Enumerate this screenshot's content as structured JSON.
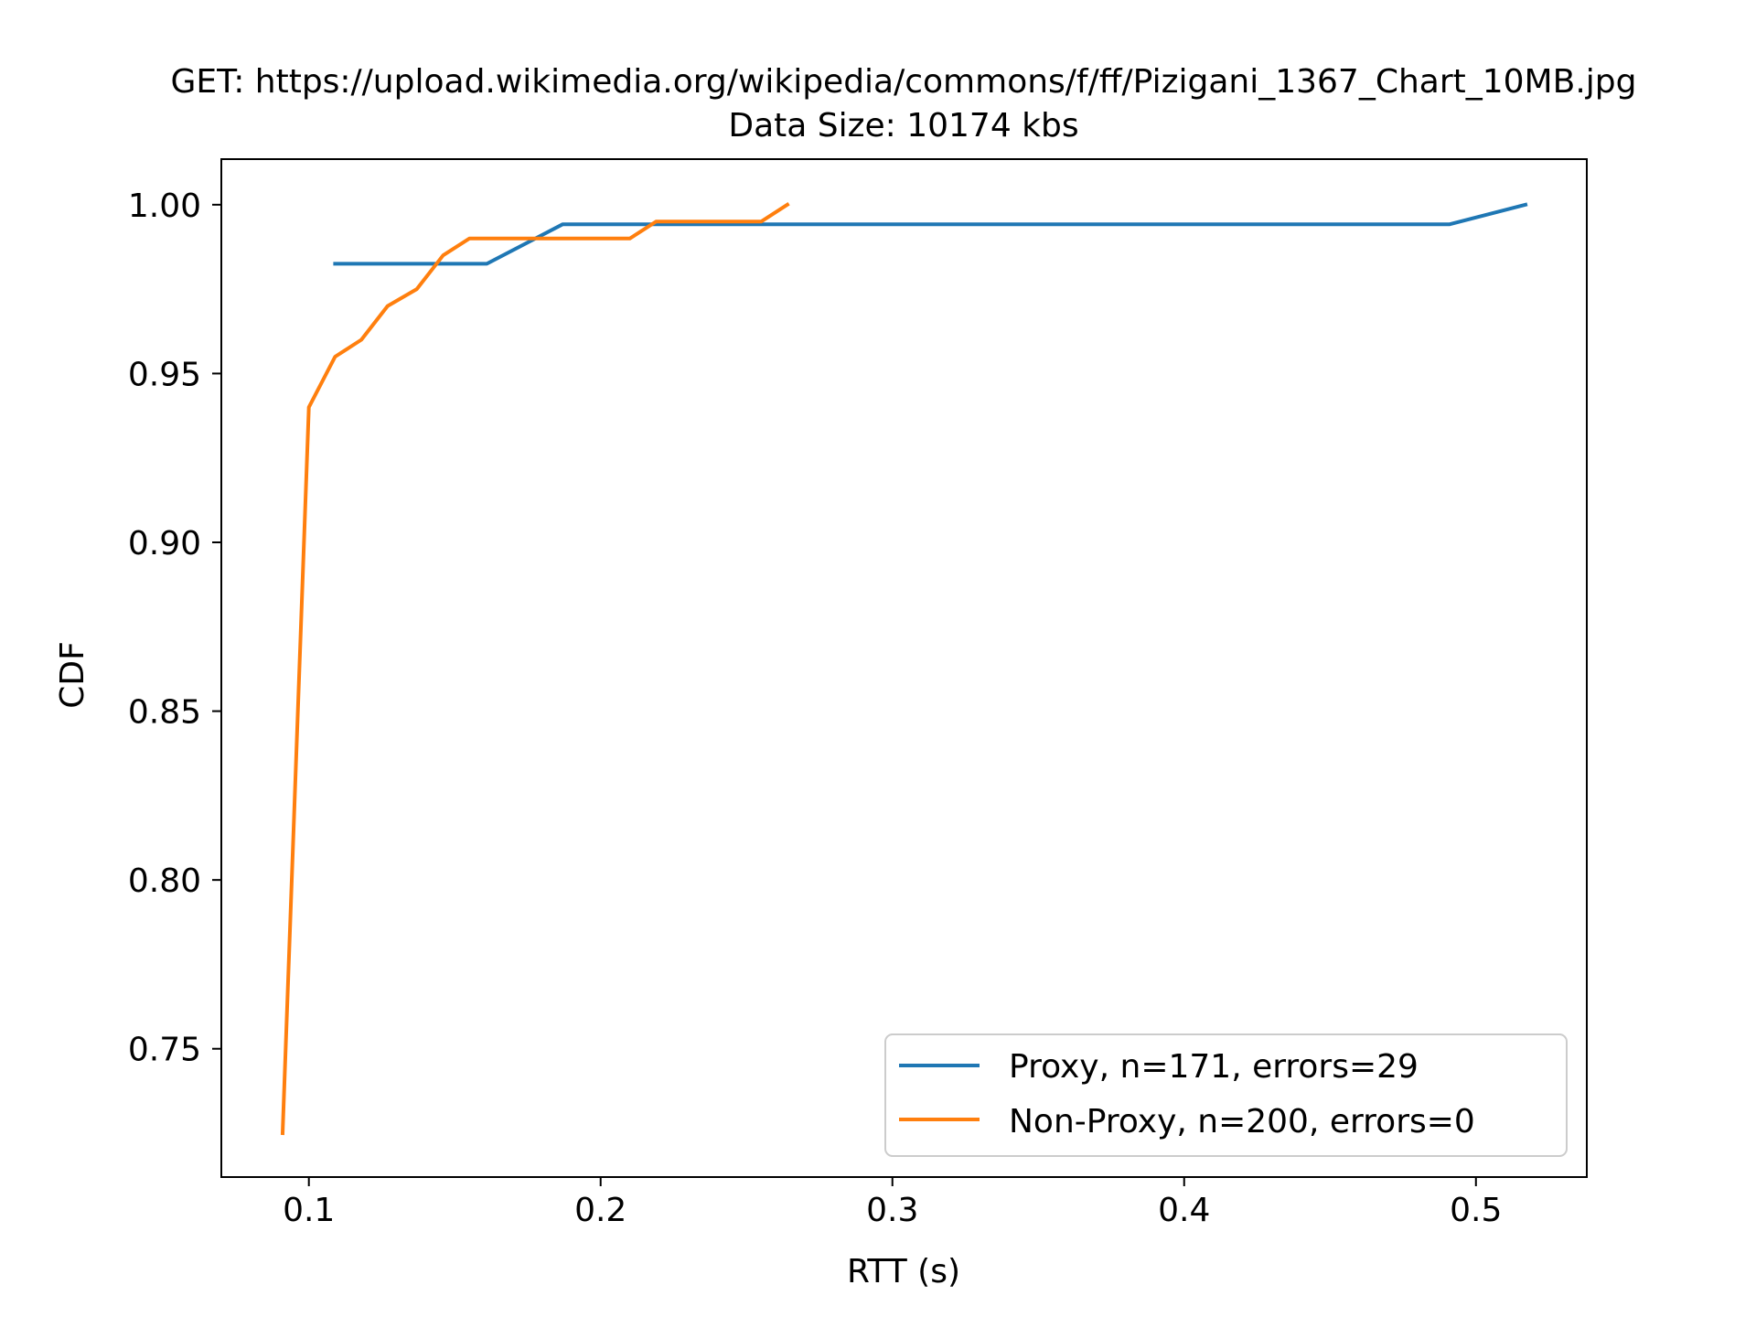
{
  "chart_data": {
    "type": "line",
    "title": "GET: https://upload.wikimedia.org/wikipedia/commons/f/ff/Pizigani_1367_Chart_10MB.jpg",
    "subtitle": "Data Size: 10174 kbs",
    "xlabel": "RTT (s)",
    "ylabel": "CDF",
    "xlim": [
      0.07,
      0.538
    ],
    "ylim": [
      0.712,
      1.0135
    ],
    "xticks": [
      {
        "value": 0.1,
        "label": "0.1"
      },
      {
        "value": 0.2,
        "label": "0.2"
      },
      {
        "value": 0.3,
        "label": "0.3"
      },
      {
        "value": 0.4,
        "label": "0.4"
      },
      {
        "value": 0.5,
        "label": "0.5"
      }
    ],
    "yticks": [
      {
        "value": 0.75,
        "label": "0.75"
      },
      {
        "value": 0.8,
        "label": "0.80"
      },
      {
        "value": 0.85,
        "label": "0.85"
      },
      {
        "value": 0.9,
        "label": "0.90"
      },
      {
        "value": 0.95,
        "label": "0.95"
      },
      {
        "value": 1.0,
        "label": "1.00"
      }
    ],
    "grid": false,
    "legend_position": "lower-right",
    "series": [
      {
        "name": "Proxy, n=171, errors=29",
        "color": "#1f77b4",
        "points": [
          [
            0.109,
            0.9825
          ],
          [
            0.161,
            0.9825
          ],
          [
            0.187,
            0.9942
          ],
          [
            0.491,
            0.9942
          ],
          [
            0.517,
            1.0
          ]
        ]
      },
      {
        "name": "Non-Proxy, n=200, errors=0",
        "color": "#ff7f0e",
        "points": [
          [
            0.091,
            0.725
          ],
          [
            0.1,
            0.94
          ],
          [
            0.109,
            0.955
          ],
          [
            0.118,
            0.96
          ],
          [
            0.127,
            0.97
          ],
          [
            0.137,
            0.975
          ],
          [
            0.146,
            0.985
          ],
          [
            0.155,
            0.99
          ],
          [
            0.21,
            0.99
          ],
          [
            0.219,
            0.995
          ],
          [
            0.255,
            0.995
          ],
          [
            0.264,
            1.0
          ]
        ]
      }
    ]
  }
}
